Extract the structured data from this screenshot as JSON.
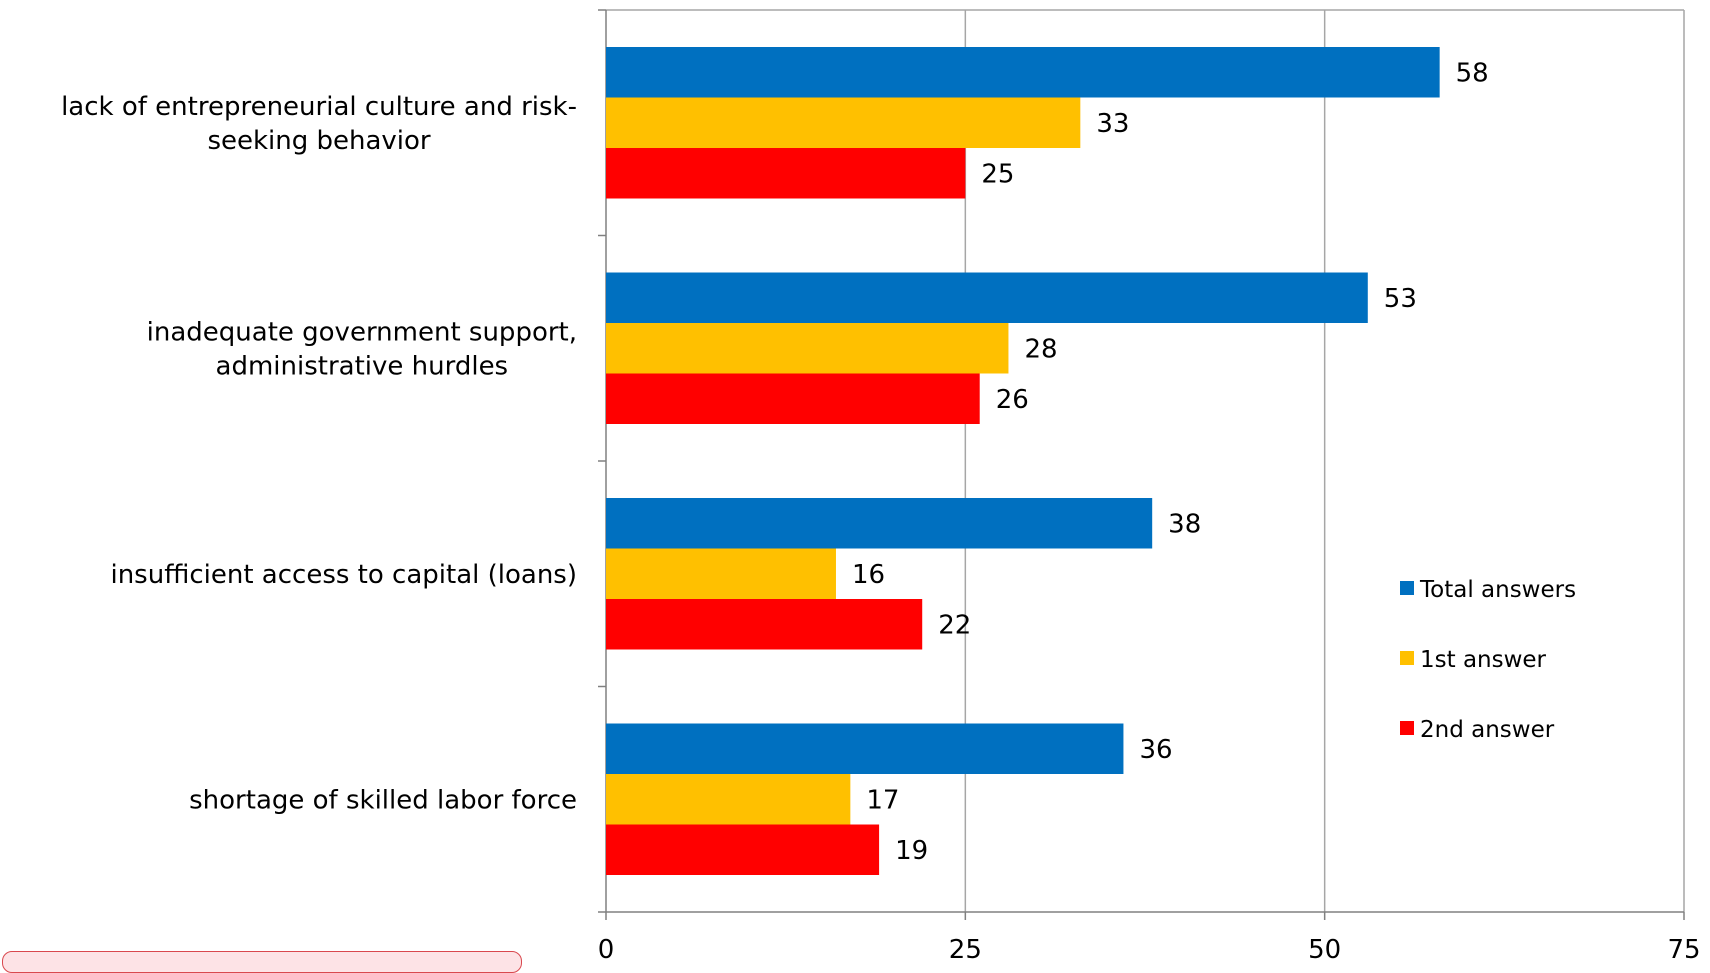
{
  "chart_data": {
    "type": "bar",
    "orientation": "horizontal",
    "categories": [
      [
        "lack of entrepreneurial culture and risk-",
        "seeking behavior"
      ],
      [
        "inadequate government support,",
        "administrative hurdles"
      ],
      [
        "insufficient access to capital (loans)"
      ],
      [
        "shortage of skilled labor force"
      ]
    ],
    "series": [
      {
        "name": "Total answers",
        "color": "#0070c0",
        "values": [
          58,
          53,
          38,
          36
        ]
      },
      {
        "name": "1st answer",
        "color": "#ffc000",
        "values": [
          33,
          28,
          16,
          17
        ]
      },
      {
        "name": "2nd answer",
        "color": "#ff0000",
        "values": [
          25,
          26,
          22,
          19
        ]
      }
    ],
    "xlim": [
      0,
      75
    ],
    "xticks": [
      "0",
      "25",
      "50",
      "75"
    ],
    "xtick_values": [
      0,
      25,
      50,
      75
    ],
    "grid": true,
    "data_labels": true,
    "legend_position": "right"
  }
}
